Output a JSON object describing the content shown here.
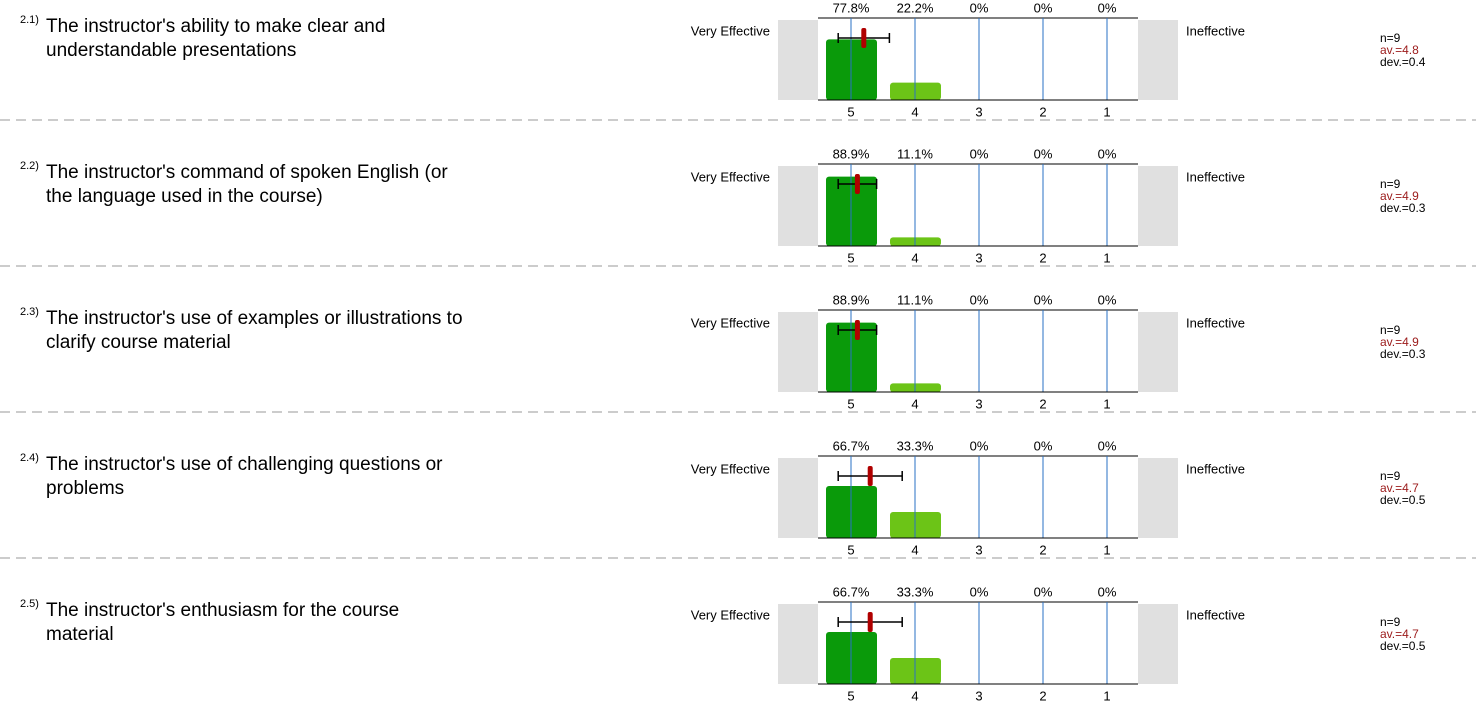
{
  "chart_data": [
    {
      "type": "bar",
      "number": "2.1)",
      "title": [
        "The instructor's ability to make clear and",
        "understandable presentations"
      ],
      "left_label": "Very Effective",
      "right_label": "Ineffective",
      "categories": [
        "5",
        "4",
        "3",
        "2",
        "1"
      ],
      "values": [
        77.8,
        22.2,
        0,
        0,
        0
      ],
      "value_labels": [
        "77.8%",
        "22.2%",
        "0%",
        "0%",
        "0%"
      ],
      "colors": [
        "#0a9a0a",
        "#6cc417",
        "#6cc417",
        "#6cc417",
        "#6cc417"
      ],
      "n": {
        "value": 9,
        "label": "n=9"
      },
      "mean": {
        "value": 4.8,
        "label": "av.=4.8"
      },
      "dev": {
        "value": 0.4,
        "label": "dev.=0.4"
      }
    },
    {
      "type": "bar",
      "number": "2.2)",
      "title": [
        "The instructor's command of spoken English (or",
        "the language used in the course)"
      ],
      "left_label": "Very Effective",
      "right_label": "Ineffective",
      "categories": [
        "5",
        "4",
        "3",
        "2",
        "1"
      ],
      "values": [
        88.9,
        11.1,
        0,
        0,
        0
      ],
      "value_labels": [
        "88.9%",
        "11.1%",
        "0%",
        "0%",
        "0%"
      ],
      "colors": [
        "#0a9a0a",
        "#6cc417",
        "#6cc417",
        "#6cc417",
        "#6cc417"
      ],
      "n": {
        "value": 9,
        "label": "n=9"
      },
      "mean": {
        "value": 4.9,
        "label": "av.=4.9"
      },
      "dev": {
        "value": 0.3,
        "label": "dev.=0.3"
      }
    },
    {
      "type": "bar",
      "number": "2.3)",
      "title": [
        "The instructor's use of examples or illustrations to",
        "clarify course material"
      ],
      "left_label": "Very Effective",
      "right_label": "Ineffective",
      "categories": [
        "5",
        "4",
        "3",
        "2",
        "1"
      ],
      "values": [
        88.9,
        11.1,
        0,
        0,
        0
      ],
      "value_labels": [
        "88.9%",
        "11.1%",
        "0%",
        "0%",
        "0%"
      ],
      "colors": [
        "#0a9a0a",
        "#6cc417",
        "#6cc417",
        "#6cc417",
        "#6cc417"
      ],
      "n": {
        "value": 9,
        "label": "n=9"
      },
      "mean": {
        "value": 4.9,
        "label": "av.=4.9"
      },
      "dev": {
        "value": 0.3,
        "label": "dev.=0.3"
      }
    },
    {
      "type": "bar",
      "number": "2.4)",
      "title": [
        "The instructor's use of challenging questions or",
        "problems"
      ],
      "left_label": "Very Effective",
      "right_label": "Ineffective",
      "categories": [
        "5",
        "4",
        "3",
        "2",
        "1"
      ],
      "values": [
        66.7,
        33.3,
        0,
        0,
        0
      ],
      "value_labels": [
        "66.7%",
        "33.3%",
        "0%",
        "0%",
        "0%"
      ],
      "colors": [
        "#0a9a0a",
        "#6cc417",
        "#6cc417",
        "#6cc417",
        "#6cc417"
      ],
      "n": {
        "value": 9,
        "label": "n=9"
      },
      "mean": {
        "value": 4.7,
        "label": "av.=4.7"
      },
      "dev": {
        "value": 0.5,
        "label": "dev.=0.5"
      }
    },
    {
      "type": "bar",
      "number": "2.5)",
      "title": [
        "The instructor's enthusiasm for the course",
        "material"
      ],
      "left_label": "Very Effective",
      "right_label": "Ineffective",
      "categories": [
        "5",
        "4",
        "3",
        "2",
        "1"
      ],
      "values": [
        66.7,
        33.3,
        0,
        0,
        0
      ],
      "value_labels": [
        "66.7%",
        "33.3%",
        "0%",
        "0%",
        "0%"
      ],
      "colors": [
        "#0a9a0a",
        "#6cc417",
        "#6cc417",
        "#6cc417",
        "#6cc417"
      ],
      "n": {
        "value": 9,
        "label": "n=9"
      },
      "mean": {
        "value": 4.7,
        "label": "av.=4.7"
      },
      "dev": {
        "value": 0.5,
        "label": "dev.=0.5"
      }
    }
  ]
}
